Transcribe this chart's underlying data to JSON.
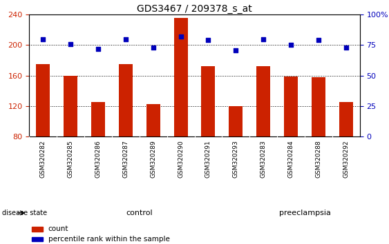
{
  "title": "GDS3467 / 209378_s_at",
  "samples": [
    "GSM320282",
    "GSM320285",
    "GSM320286",
    "GSM320287",
    "GSM320289",
    "GSM320290",
    "GSM320291",
    "GSM320293",
    "GSM320283",
    "GSM320284",
    "GSM320288",
    "GSM320292"
  ],
  "bar_values": [
    175,
    160,
    125,
    175,
    123,
    236,
    172,
    120,
    172,
    159,
    158,
    125
  ],
  "dot_values_right": [
    80,
    76,
    72,
    80,
    73,
    82,
    79,
    71,
    80,
    75,
    79,
    73
  ],
  "bar_color": "#CC2200",
  "dot_color": "#0000BB",
  "ylim_left": [
    80,
    240
  ],
  "ylim_right": [
    0,
    100
  ],
  "yticks_left": [
    80,
    120,
    160,
    200,
    240
  ],
  "yticks_right": [
    0,
    25,
    50,
    75,
    100
  ],
  "n_control": 8,
  "n_preeclampsia": 4,
  "control_color": "#BBFFBB",
  "preeclampsia_color": "#44EE44",
  "group_label": "disease state",
  "control_label": "control",
  "preeclampsia_label": "preeclampsia",
  "legend_count_label": "count",
  "legend_pct_label": "percentile rank within the sample",
  "bar_color_legend": "#CC2200",
  "dot_color_legend": "#0000BB",
  "bg_color": "#FFFFFF",
  "xtick_bg_color": "#CCCCCC",
  "dotted_line_color": "#000000",
  "bar_width": 0.5,
  "title_fontsize": 10,
  "tick_fontsize": 8,
  "label_fontsize": 8
}
